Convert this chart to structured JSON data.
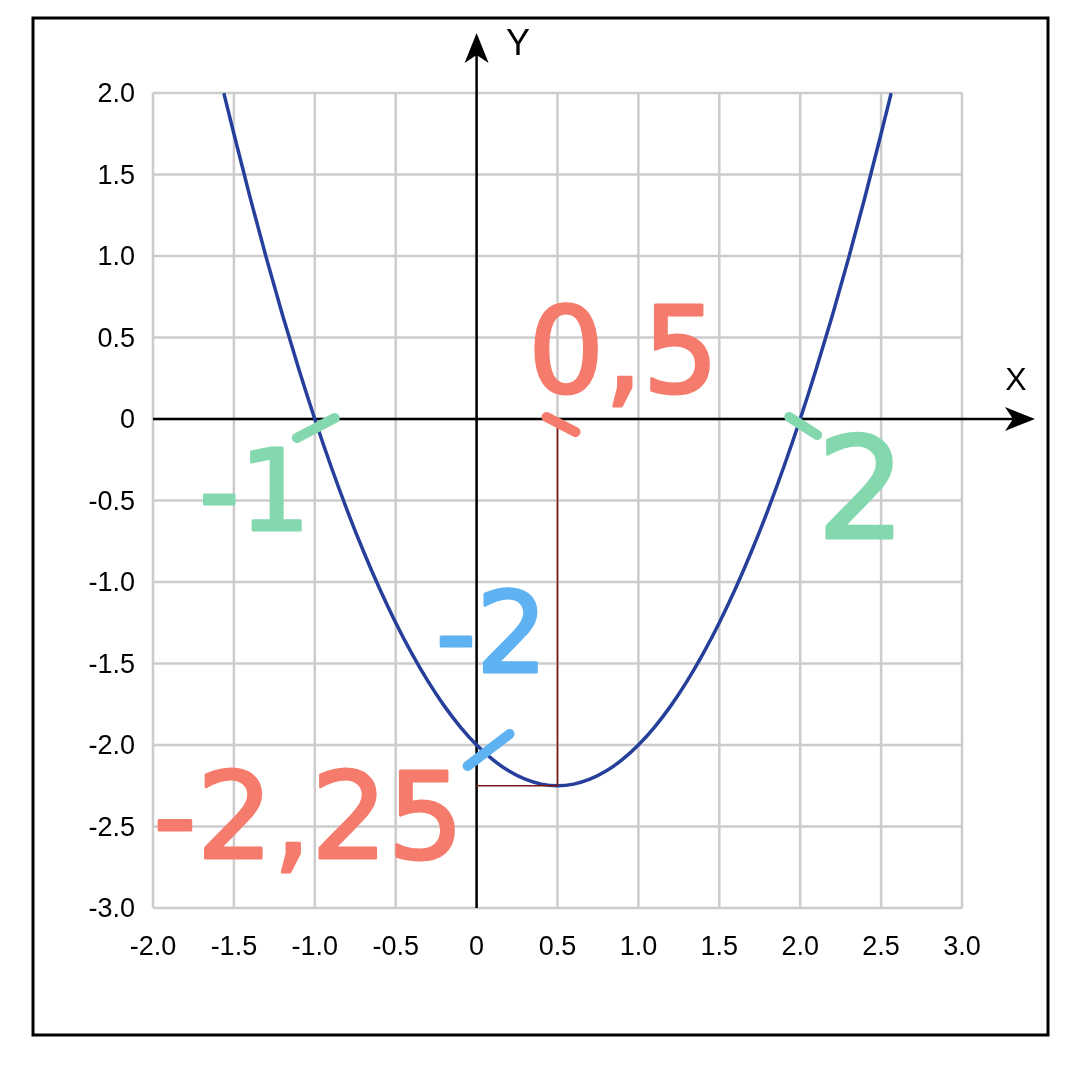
{
  "chart_data": {
    "type": "line",
    "xlabel": "X",
    "ylabel": "Y",
    "xlim": [
      -2,
      3
    ],
    "ylim": [
      -3,
      2
    ],
    "xticks": [
      {
        "value": -2,
        "label": "-2.0"
      },
      -1.5,
      {
        "value": -1,
        "label": "-1.0"
      },
      -0.5,
      0,
      0.5,
      {
        "value": 1,
        "label": "1.0"
      },
      1.5,
      {
        "value": 2,
        "label": "2.0"
      },
      2.5,
      {
        "value": 3,
        "label": "3.0"
      }
    ],
    "yticks": [
      {
        "value": -3,
        "label": "-3.0"
      },
      -2.5,
      {
        "value": -2,
        "label": "-2.0"
      },
      -1.5,
      {
        "value": -1,
        "label": "-1.0"
      },
      -0.5,
      0,
      0.5,
      {
        "value": 1,
        "label": "1.0"
      },
      1.5,
      {
        "value": 2,
        "label": "2.0"
      }
    ],
    "grid": true,
    "series": [
      {
        "color": "#253f9a",
        "x": [
          -1.56,
          -1.5,
          -1.4,
          -1.3,
          -1.2,
          -1.1,
          -1.0,
          -0.9,
          -0.8,
          -0.7,
          -0.6,
          -0.5,
          -0.4,
          -0.3,
          -0.2,
          -0.1,
          0,
          0.1,
          0.2,
          0.3,
          0.4,
          0.5,
          0.6,
          0.7,
          0.8,
          0.9,
          1.0,
          1.1,
          1.2,
          1.3,
          1.4,
          1.5,
          1.6,
          1.7,
          1.8,
          1.9,
          2.0,
          2.1,
          2.2,
          2.3,
          2.4,
          2.5,
          2.56
        ],
        "values": [
          1.99,
          1.75,
          1.36,
          0.99,
          0.64,
          0.31,
          0,
          -0.29,
          -0.56,
          -0.81,
          -1.04,
          -1.25,
          -1.44,
          -1.61,
          -1.76,
          -1.89,
          -2,
          -2.09,
          -2.16,
          -2.21,
          -2.24,
          -2.25,
          -2.24,
          -2.21,
          -2.16,
          -2.09,
          -2,
          -1.89,
          -1.76,
          -1.61,
          -1.44,
          -1.25,
          -1.04,
          -0.81,
          -0.56,
          -0.29,
          0,
          0.31,
          0.64,
          0.99,
          1.36,
          1.75,
          1.99
        ]
      },
      {
        "color": "#7a1a1a",
        "x": [
          0,
          0.5,
          0.5
        ],
        "values": [
          -2.25,
          -2.25,
          0
        ]
      }
    ],
    "annotations": [
      {
        "text": "0,5",
        "x": 0.5,
        "y": 0
      },
      {
        "text": "-1",
        "x": -1,
        "y": 0
      },
      {
        "text": "2",
        "x": 2,
        "y": 0
      },
      {
        "text": "-2",
        "x": 0,
        "y": -2
      },
      {
        "text": "-2,25",
        "x": 0,
        "y": -2.25
      }
    ]
  }
}
